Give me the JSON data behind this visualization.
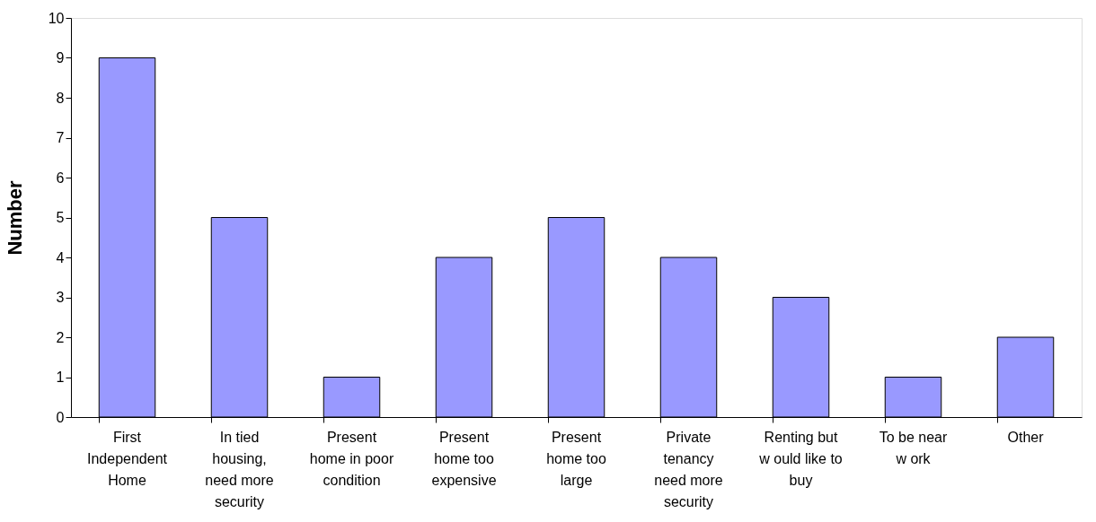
{
  "chart_data": {
    "type": "bar",
    "ylabel": "Number",
    "categories": [
      "First\nIndependent\nHome",
      "In tied\nhousing,\nneed more\nsecurity",
      "Present\nhome in poor\ncondition",
      "Present\nhome too\nexpensive",
      "Present\nhome too\nlarge",
      "Private\ntenancy\nneed more\nsecurity",
      "Renting but\nw ould like to\nbuy",
      "To be near\nw ork",
      "Other"
    ],
    "values": [
      9,
      5,
      1,
      4,
      5,
      4,
      3,
      1,
      2
    ],
    "color": "#9999ff",
    "ylim": [
      0,
      10
    ],
    "yticks": [
      0,
      1,
      2,
      3,
      4,
      5,
      6,
      7,
      8,
      9,
      10
    ],
    "grid": false
  }
}
